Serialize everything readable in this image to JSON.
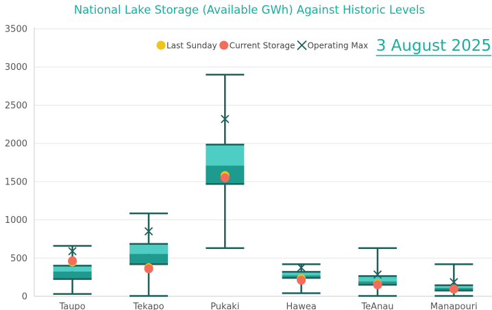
{
  "chart_data": {
    "type": "box",
    "title": "National Lake Storage (Available GWh) Against Historic Levels",
    "date_label": "3 August 2025",
    "xlabel": "",
    "ylabel": "",
    "ylim": [
      0,
      3500
    ],
    "yticks": [
      0,
      500,
      1000,
      1500,
      2000,
      2500,
      3000,
      3500
    ],
    "grid": true,
    "legend_position": "top-center",
    "legend": [
      {
        "name": "Last Sunday",
        "color": "#f0c419",
        "marker": "circle"
      },
      {
        "name": "Current Storage",
        "color": "#f26d5b",
        "marker": "circle"
      },
      {
        "name": "Operating Max",
        "color": "#1d5f5a",
        "marker": "x"
      }
    ],
    "colors": {
      "whisker": "#1d5f5a",
      "box_outer": "#4ecdc4",
      "box_inner": "#1f9a8e"
    },
    "categories": [
      "Taupo",
      "Tekapo",
      "Pukaki",
      "Hawea",
      "TeAnau",
      "Manapouri"
    ],
    "boxes": [
      {
        "name": "Taupo",
        "min": 30,
        "p10": 225,
        "q1": 225,
        "median": 325,
        "q3": 400,
        "p90": 400,
        "max": 660,
        "last_sunday": 450,
        "current": 465,
        "operating_max": 590
      },
      {
        "name": "Tekapo",
        "min": 5,
        "p10": 420,
        "q1": 420,
        "median": 555,
        "q3": 685,
        "p90": 685,
        "max": 1085,
        "last_sunday": 375,
        "current": 360,
        "operating_max": 850
      },
      {
        "name": "Pukaki",
        "min": 630,
        "p10": 1470,
        "q1": 1470,
        "median": 1710,
        "q3": 1985,
        "p90": 1985,
        "max": 2900,
        "last_sunday": 1580,
        "current": 1550,
        "operating_max": 2320
      },
      {
        "name": "Hawea",
        "min": 40,
        "p10": 240,
        "q1": 240,
        "median": 275,
        "q3": 320,
        "p90": 320,
        "max": 420,
        "last_sunday": 230,
        "current": 210,
        "operating_max": 375
      },
      {
        "name": "TeAnau",
        "min": 5,
        "p10": 150,
        "q1": 150,
        "median": 195,
        "q3": 265,
        "p90": 265,
        "max": 630,
        "last_sunday": 160,
        "current": 150,
        "operating_max": 285
      },
      {
        "name": "Manapouri",
        "min": 5,
        "p10": 75,
        "q1": 75,
        "median": 110,
        "q3": 145,
        "p90": 145,
        "max": 420,
        "last_sunday": 95,
        "current": 95,
        "operating_max": 185
      }
    ]
  }
}
